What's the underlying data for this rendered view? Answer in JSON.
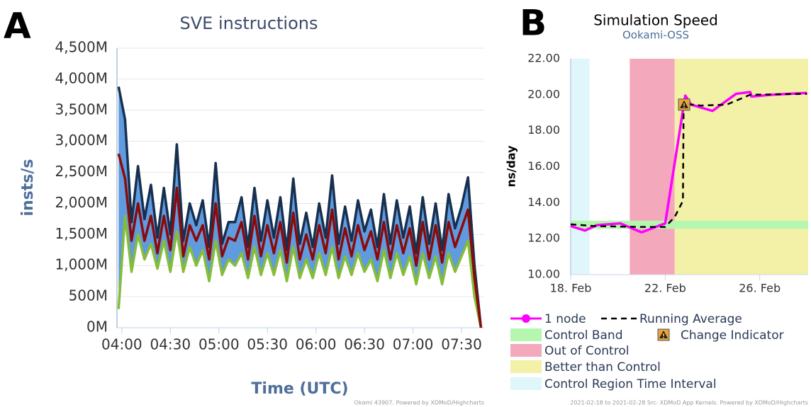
{
  "chart_data": [
    {
      "type": "line",
      "label": "A",
      "title": "SVE instructions",
      "y_label": "insts/s",
      "x_label": "Time (UTC)",
      "credits": "Okami 43907. Powered by XDMoD/Highcharts",
      "x": [
        "03:58",
        "04:02",
        "04:06",
        "04:10",
        "04:14",
        "04:18",
        "04:22",
        "04:26",
        "04:30",
        "04:34",
        "04:38",
        "04:42",
        "04:46",
        "04:50",
        "04:54",
        "04:58",
        "05:02",
        "05:06",
        "05:10",
        "05:14",
        "05:18",
        "05:22",
        "05:26",
        "05:30",
        "05:34",
        "05:38",
        "05:42",
        "05:46",
        "05:50",
        "05:54",
        "05:58",
        "06:02",
        "06:06",
        "06:10",
        "06:14",
        "06:18",
        "06:22",
        "06:26",
        "06:30",
        "06:34",
        "06:38",
        "06:42",
        "06:46",
        "06:50",
        "06:54",
        "06:58",
        "07:02",
        "07:06",
        "07:10",
        "07:14",
        "07:18",
        "07:22",
        "07:26",
        "07:30",
        "07:34",
        "07:38",
        "07:42"
      ],
      "xlim": [
        "03:57",
        "07:44"
      ],
      "xticks": [
        "04:00",
        "04:30",
        "05:00",
        "05:30",
        "06:00",
        "06:30",
        "07:00",
        "07:30"
      ],
      "ylim": [
        0,
        4500000000.0
      ],
      "yticks": [
        {
          "value": 0,
          "label": "0M"
        },
        {
          "value": 500000000.0,
          "label": "500M"
        },
        {
          "value": 1000000000.0,
          "label": "1,000M"
        },
        {
          "value": 1500000000.0,
          "label": "1,500M"
        },
        {
          "value": 2000000000.0,
          "label": "2,000M"
        },
        {
          "value": 2500000000.0,
          "label": "2,500M"
        },
        {
          "value": 3000000000.0,
          "label": "3,000M"
        },
        {
          "value": 3500000000.0,
          "label": "3,500M"
        },
        {
          "value": 4000000000.0,
          "label": "4,000M"
        },
        {
          "value": 4500000000.0,
          "label": "4,500M"
        }
      ],
      "grid": true,
      "area_color": "#4f8fdc",
      "series": [
        {
          "color": "#17304f",
          "values": [
            3880000000.0,
            3350000000.0,
            1700000000.0,
            2600000000.0,
            1750000000.0,
            2300000000.0,
            1450000000.0,
            2250000000.0,
            1500000000.0,
            2950000000.0,
            1400000000.0,
            2000000000.0,
            1650000000.0,
            2050000000.0,
            1300000000.0,
            2650000000.0,
            1350000000.0,
            1700000000.0,
            1700000000.0,
            2100000000.0,
            1300000000.0,
            2250000000.0,
            1400000000.0,
            2050000000.0,
            1450000000.0,
            2100000000.0,
            1250000000.0,
            2400000000.0,
            1350000000.0,
            1850000000.0,
            1300000000.0,
            2000000000.0,
            1450000000.0,
            2450000000.0,
            1350000000.0,
            1950000000.0,
            1400000000.0,
            2050000000.0,
            1550000000.0,
            1900000000.0,
            1300000000.0,
            2150000000.0,
            1350000000.0,
            2050000000.0,
            1450000000.0,
            1950000000.0,
            1200000000.0,
            2100000000.0,
            1350000000.0,
            2000000000.0,
            1250000000.0,
            2150000000.0,
            1600000000.0,
            1950000000.0,
            2420000000.0,
            1000000000.0,
            0
          ]
        },
        {
          "color": "#8b0a0a",
          "values": [
            2800000000.0,
            2400000000.0,
            1400000000.0,
            2000000000.0,
            1400000000.0,
            1800000000.0,
            1200000000.0,
            1800000000.0,
            1250000000.0,
            2250000000.0,
            1150000000.0,
            1650000000.0,
            1400000000.0,
            1650000000.0,
            1100000000.0,
            2000000000.0,
            1150000000.0,
            1450000000.0,
            1400000000.0,
            1700000000.0,
            1100000000.0,
            1800000000.0,
            1150000000.0,
            1650000000.0,
            1200000000.0,
            1700000000.0,
            1050000000.0,
            1850000000.0,
            1100000000.0,
            1500000000.0,
            1100000000.0,
            1650000000.0,
            1200000000.0,
            1900000000.0,
            1100000000.0,
            1600000000.0,
            1150000000.0,
            1650000000.0,
            1250000000.0,
            1550000000.0,
            1100000000.0,
            1700000000.0,
            1100000000.0,
            1650000000.0,
            1200000000.0,
            1600000000.0,
            1000000000.0,
            1700000000.0,
            1100000000.0,
            1650000000.0,
            1050000000.0,
            1700000000.0,
            1300000000.0,
            1600000000.0,
            1900000000.0,
            800000000.0,
            0
          ]
        },
        {
          "color": "#86bd38",
          "values": [
            300000000.0,
            1800000000.0,
            900000000.0,
            1500000000.0,
            1100000000.0,
            1350000000.0,
            950000000.0,
            1400000000.0,
            900000000.0,
            1550000000.0,
            900000000.0,
            1300000000.0,
            1000000000.0,
            1250000000.0,
            750000000.0,
            1400000000.0,
            850000000.0,
            1100000000.0,
            1000000000.0,
            1200000000.0,
            800000000.0,
            1300000000.0,
            850000000.0,
            1200000000.0,
            850000000.0,
            1250000000.0,
            750000000.0,
            1300000000.0,
            800000000.0,
            1100000000.0,
            800000000.0,
            1200000000.0,
            850000000.0,
            1300000000.0,
            800000000.0,
            1150000000.0,
            850000000.0,
            1200000000.0,
            900000000.0,
            1100000000.0,
            750000000.0,
            1250000000.0,
            800000000.0,
            1200000000.0,
            850000000.0,
            1150000000.0,
            700000000.0,
            1200000000.0,
            800000000.0,
            1150000000.0,
            700000000.0,
            1200000000.0,
            900000000.0,
            1150000000.0,
            1400000000.0,
            500000000.0,
            0
          ]
        }
      ]
    },
    {
      "type": "line",
      "label": "B",
      "title": "Simulation Speed",
      "subtitle": "Ookami-OSS",
      "y_label": "ns/day",
      "credits": "2021-02-18 to 2021-02-28 Src: XDMoD App Kernels. Powered by XDMoD/Highcharts",
      "xlim": [
        18,
        28.05
      ],
      "xticks": [
        {
          "value": 18,
          "label": "18. Feb"
        },
        {
          "value": 22,
          "label": "22. Feb"
        },
        {
          "value": 26,
          "label": "26. Feb"
        }
      ],
      "ylim": [
        10,
        22
      ],
      "yticks": [
        {
          "value": 10,
          "label": "10.00"
        },
        {
          "value": 12,
          "label": "12.00"
        },
        {
          "value": 14,
          "label": "14.00"
        },
        {
          "value": 16,
          "label": "16.00"
        },
        {
          "value": 18,
          "label": "18.00"
        },
        {
          "value": 20,
          "label": "20.00"
        },
        {
          "value": 22,
          "label": "22.00"
        }
      ],
      "grid": false,
      "bands": [
        {
          "name": "Control Band",
          "color": "#b6f7b0",
          "axis": "y",
          "from": 12.55,
          "to": 13.0
        },
        {
          "name": "Out of Control",
          "color": "#f4a8bb",
          "axis": "x",
          "from": 20.5,
          "to": 22.4
        },
        {
          "name": "Better than Control",
          "color": "#f3f0a8",
          "axis": "x",
          "from": 22.4,
          "to": 28.05
        },
        {
          "name": "Control Region Time Interval",
          "color": "#dff6fa",
          "axis": "x",
          "from": 18,
          "to": 18.8
        }
      ],
      "series": [
        {
          "name": "1 node",
          "color": "#ff00ff",
          "x": [
            18,
            18.6,
            19.1,
            20.1,
            21.0,
            21.5,
            22.0,
            22.85,
            23.1,
            24.0,
            25.0,
            25.6,
            25.65,
            26.5,
            28.0
          ],
          "values": [
            12.7,
            12.45,
            12.75,
            12.85,
            12.35,
            12.6,
            12.85,
            19.95,
            19.45,
            19.1,
            20.05,
            20.15,
            19.9,
            20.0,
            20.1
          ]
        },
        {
          "name": "Running Average",
          "color": "#000000",
          "dash": true,
          "x": [
            18,
            19,
            21,
            22,
            22.4,
            22.75,
            22.78,
            23.5,
            24.6,
            25.6,
            28.0
          ],
          "values": [
            12.8,
            12.7,
            12.65,
            12.65,
            13.2,
            14.1,
            19.5,
            19.4,
            19.45,
            20.0,
            20.05
          ]
        }
      ],
      "markers": [
        {
          "name": "Change Indicator",
          "color": "#e8a33a",
          "x": 22.8,
          "y": 19.45
        }
      ]
    }
  ]
}
